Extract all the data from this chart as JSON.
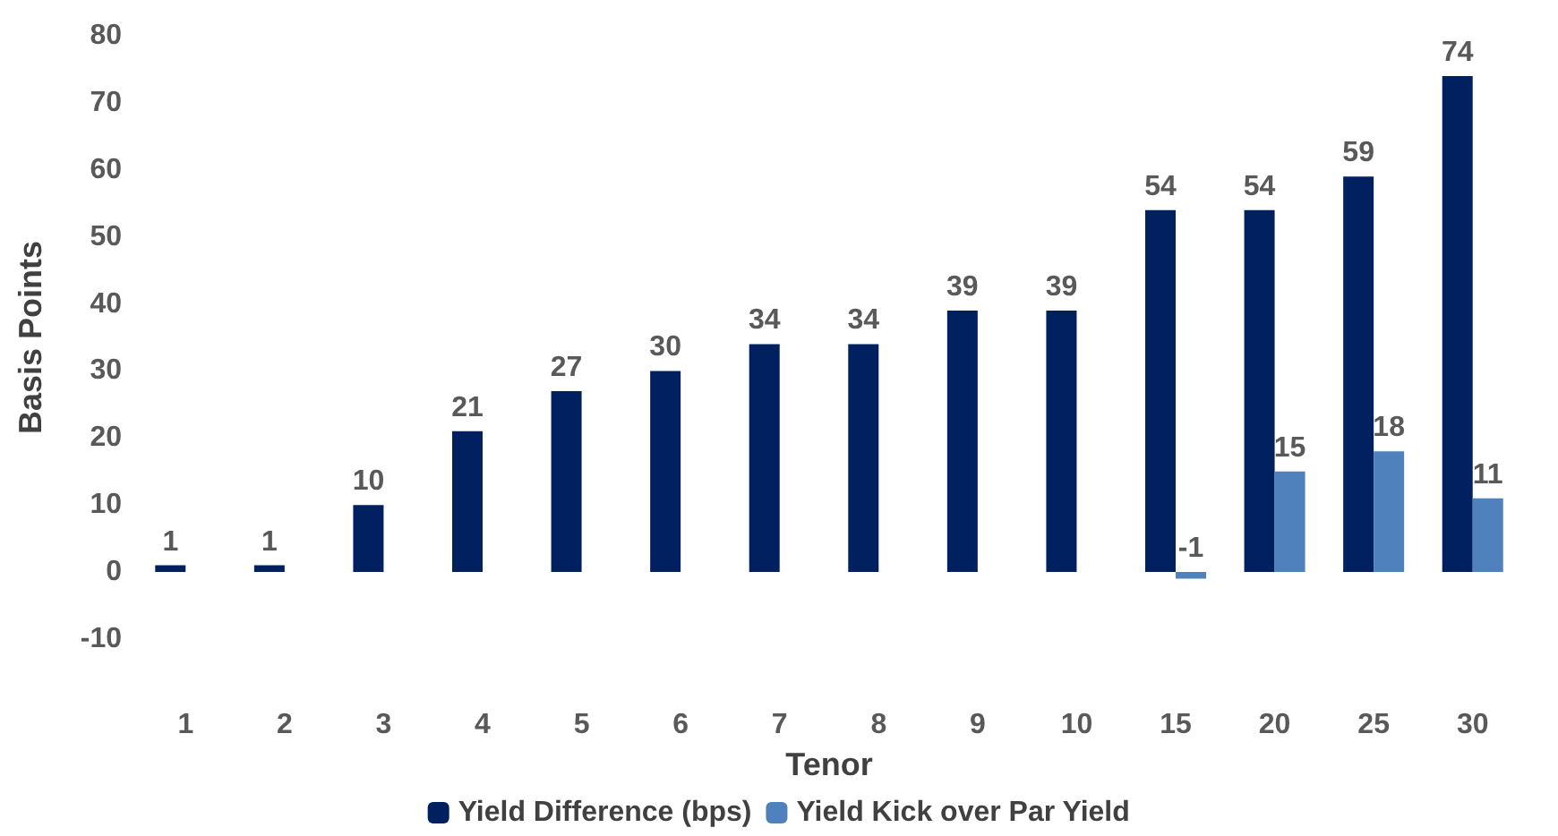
{
  "chart_data": {
    "type": "bar",
    "xlabel": "Tenor",
    "ylabel": "Basis Points",
    "categories": [
      "1",
      "2",
      "3",
      "4",
      "5",
      "6",
      "7",
      "8",
      "9",
      "10",
      "15",
      "20",
      "25",
      "30"
    ],
    "series": [
      {
        "name": "Yield Difference (bps)",
        "color": "#002060",
        "values": [
          1,
          1,
          10,
          21,
          27,
          30,
          34,
          34,
          39,
          39,
          54,
          54,
          59,
          74
        ],
        "value_labels": [
          "1",
          "1",
          "10",
          "21",
          "27",
          "30",
          "34",
          "34",
          "39",
          "39",
          "54",
          "54",
          "59",
          "74"
        ]
      },
      {
        "name": "Yield Kick over Par Yield",
        "color": "#4f81bd",
        "values": [
          0,
          0,
          0,
          0,
          0,
          0,
          0,
          0,
          0,
          0,
          -1,
          15,
          18,
          11
        ],
        "value_labels": [
          null,
          null,
          null,
          null,
          null,
          null,
          null,
          null,
          null,
          null,
          "-1",
          "15",
          "18",
          "11"
        ]
      }
    ],
    "ylim": [
      -10,
      80
    ],
    "yticks": [
      -10,
      0,
      10,
      20,
      30,
      40,
      50,
      60,
      70,
      80
    ],
    "grid": false,
    "legend": "bottom"
  }
}
